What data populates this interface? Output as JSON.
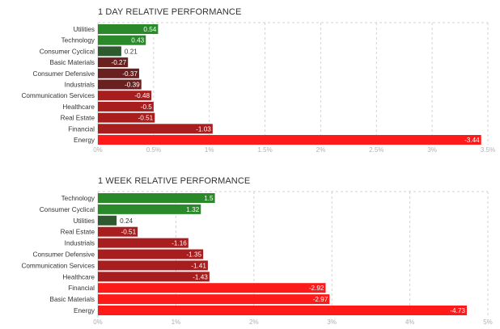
{
  "chart_data": [
    {
      "type": "bar",
      "orientation": "horizontal",
      "title": "1 DAY RELATIVE PERFORMANCE",
      "categories": [
        "Utilities",
        "Technology",
        "Consumer Cyclical",
        "Basic Materials",
        "Consumer Defensive",
        "Industrials",
        "Communication Services",
        "Healthcare",
        "Real Estate",
        "Financial",
        "Energy"
      ],
      "values": [
        0.54,
        0.43,
        0.21,
        -0.27,
        -0.37,
        -0.39,
        -0.48,
        -0.5,
        -0.51,
        -1.03,
        -3.44
      ],
      "value_labels": [
        "0.54",
        "0.43",
        "0.21",
        "-0.27",
        "-0.37",
        "-0.39",
        "-0.48",
        "-0.5",
        "-0.51",
        "-1.03",
        "-3.44"
      ],
      "xlim": [
        0,
        3.5
      ],
      "x_ticks": [
        0,
        0.5,
        1,
        1.5,
        2,
        2.5,
        3,
        3.5
      ],
      "x_tick_labels": [
        "0%",
        "0.5%",
        "1%",
        "1.5%",
        "2%",
        "2.5%",
        "3%",
        "3.5%"
      ],
      "scale": "absolute value",
      "grid": "vertical dashed"
    },
    {
      "type": "bar",
      "orientation": "horizontal",
      "title": "1 WEEK RELATIVE PERFORMANCE",
      "categories": [
        "Technology",
        "Consumer Cyclical",
        "Utilities",
        "Real Estate",
        "Industrials",
        "Consumer Defensive",
        "Communication Services",
        "Healthcare",
        "Financial",
        "Basic Materials",
        "Energy"
      ],
      "values": [
        1.5,
        1.32,
        0.24,
        -0.51,
        -1.16,
        -1.35,
        -1.41,
        -1.43,
        -2.92,
        -2.97,
        -4.73
      ],
      "value_labels": [
        "1.5",
        "1.32",
        "0.24",
        "-0.51",
        "-1.16",
        "-1.35",
        "-1.41",
        "-1.43",
        "-2.92",
        "-2.97",
        "-4.73"
      ],
      "xlim": [
        0,
        5
      ],
      "x_ticks": [
        0,
        1,
        2,
        3,
        4,
        5
      ],
      "x_tick_labels": [
        "0%",
        "1%",
        "2%",
        "3%",
        "4%",
        "5%"
      ],
      "scale": "absolute value",
      "grid": "vertical dashed"
    }
  ],
  "colors": {
    "positive_strong": "#2a8a2a",
    "positive_weak": "#2f5a2f",
    "negative_weak": "#6b2020",
    "negative_mid": "#a81e1e",
    "negative_strong": "#ff1a1a",
    "grid": "#d2d2d2",
    "tick_text": "#b0b0b0",
    "label_text": "#333333"
  }
}
